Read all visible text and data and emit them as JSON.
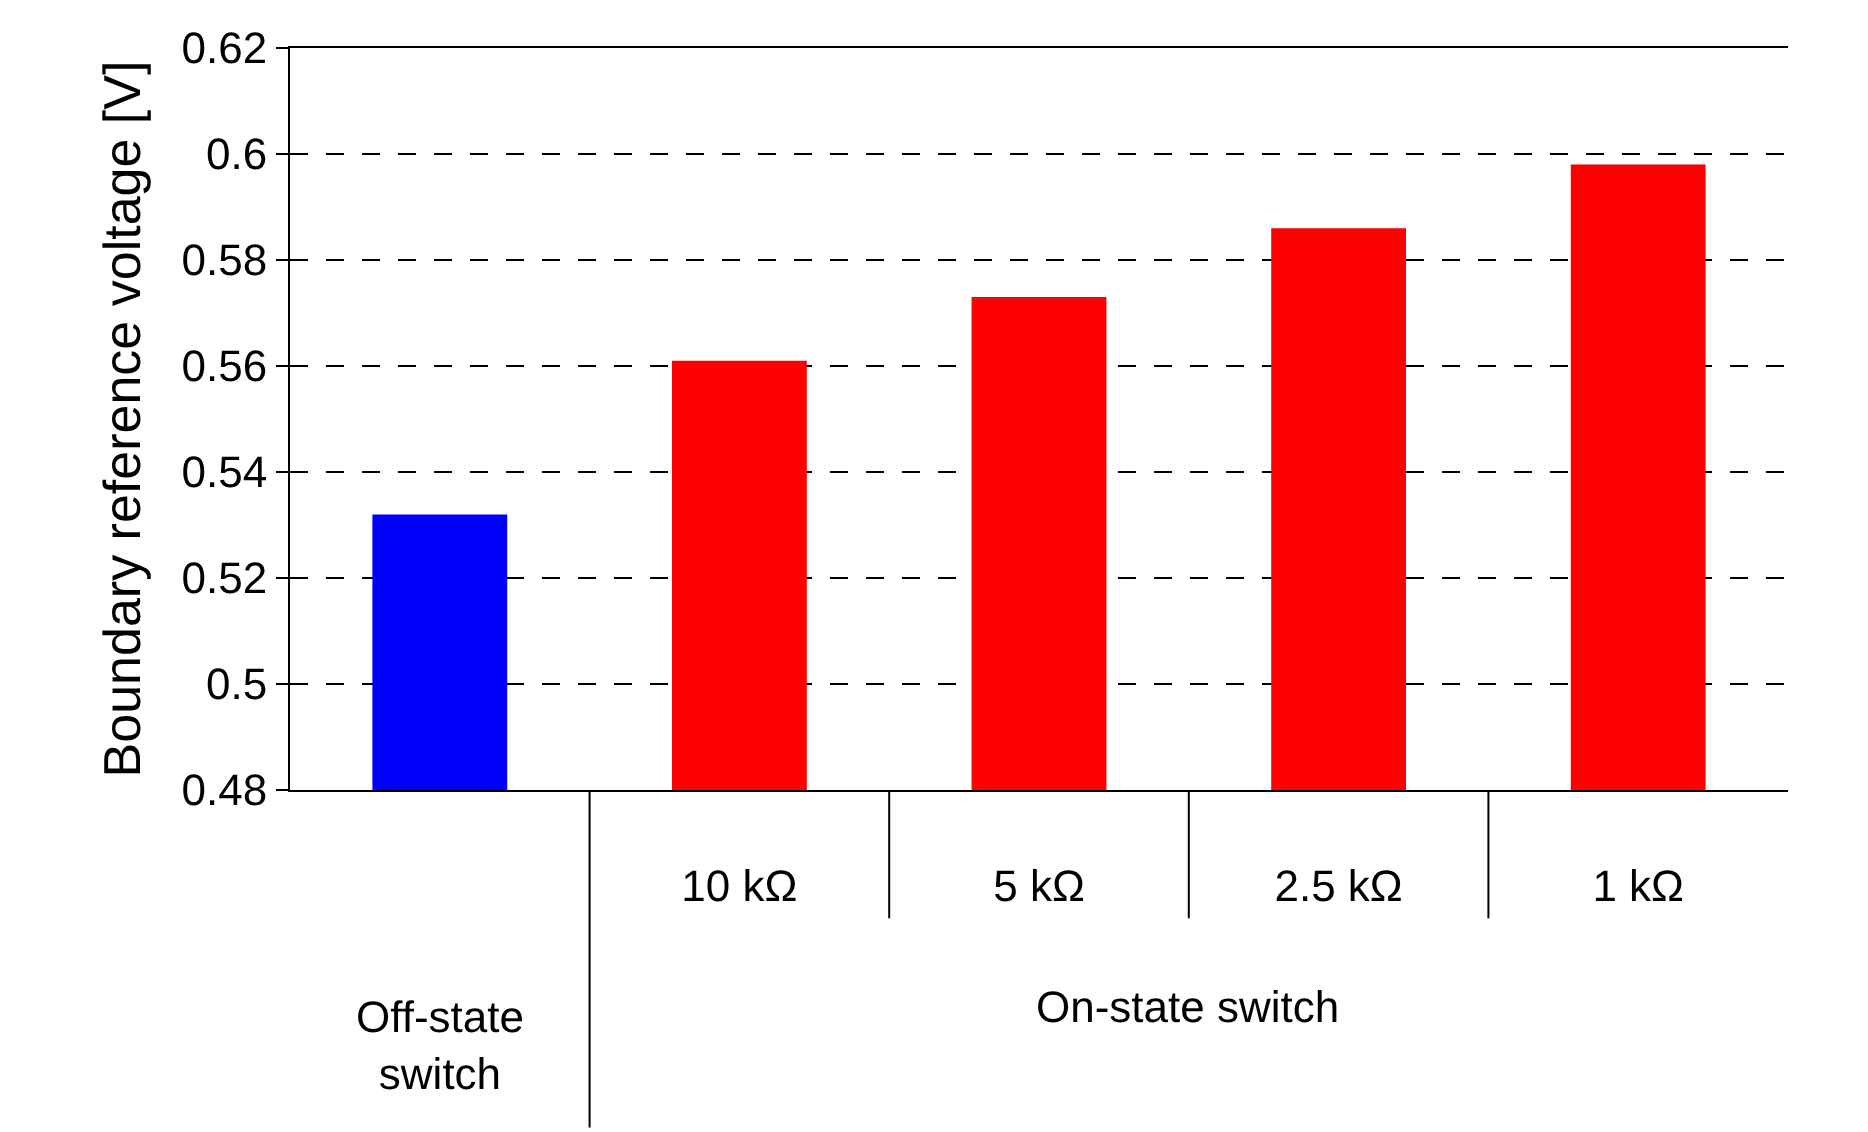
{
  "chart_data": {
    "type": "bar",
    "ylabel": "Boundary reference voltage [V]",
    "categories": [
      null,
      "10 kΩ",
      "5 kΩ",
      "2.5 kΩ",
      "1 kΩ"
    ],
    "values": [
      0.532,
      0.561,
      0.573,
      0.586,
      0.598
    ],
    "colors": [
      "#0000ff",
      "#ff0000",
      "#ff0000",
      "#ff0000",
      "#ff0000"
    ],
    "annotations": [
      "Off-state switch",
      "On-state switch"
    ],
    "ylim": [
      0.48,
      0.62
    ],
    "yticks": [
      0.48,
      0.5,
      0.52,
      0.54,
      0.56,
      0.58,
      0.6,
      0.62
    ],
    "grid": "y",
    "legend": false
  }
}
